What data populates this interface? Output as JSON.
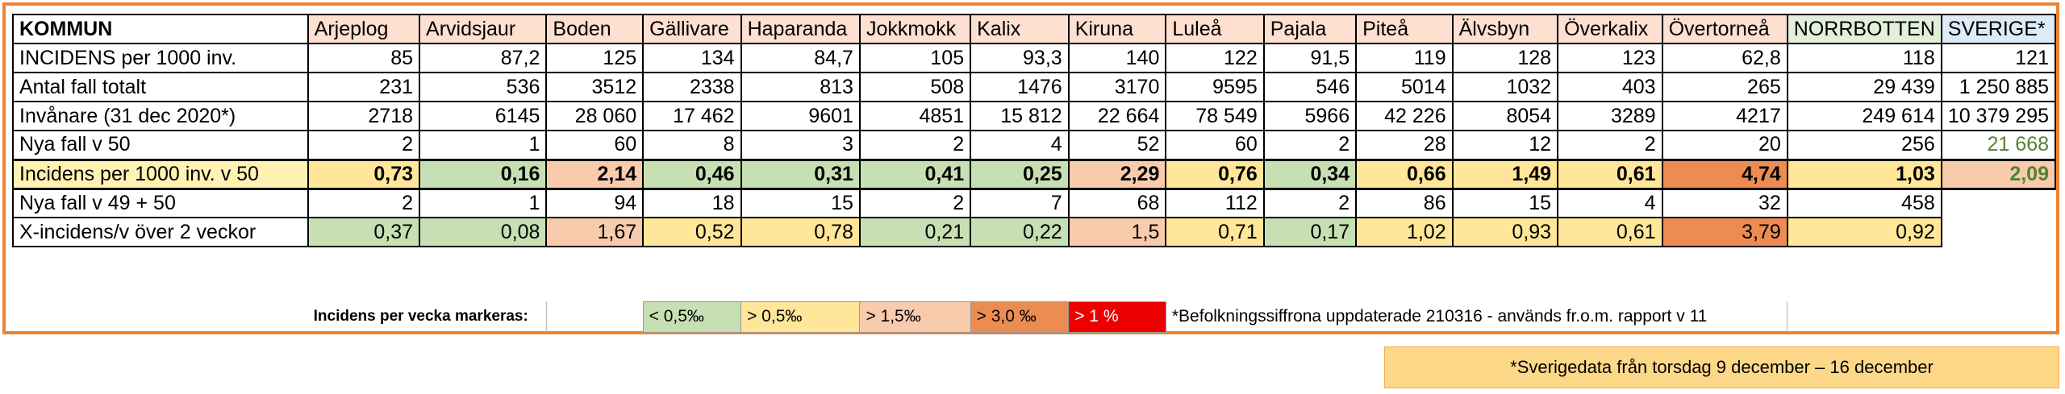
{
  "table": {
    "corner": "KOMMUN",
    "columns": [
      "Arjeplog",
      "Arvidsjaur",
      "Boden",
      "Gällivare",
      "Haparanda",
      "Jokkmokk",
      "Kalix",
      "Kiruna",
      "Luleå",
      "Pajala",
      "Piteå",
      "Älvsbyn",
      "Överkalix",
      "Övertorneå",
      "NORRBOTTEN",
      "SVERIGE*"
    ],
    "rows": [
      {
        "label": "INCIDENS per 1000 inv.",
        "values": [
          "85",
          "87,2",
          "125",
          "134",
          "84,7",
          "105",
          "93,3",
          "140",
          "122",
          "91,5",
          "119",
          "128",
          "123",
          "62,8",
          "118",
          "121"
        ]
      },
      {
        "label": "Antal fall totalt",
        "values": [
          "231",
          "536",
          "3512",
          "2338",
          "813",
          "508",
          "1476",
          "3170",
          "9595",
          "546",
          "5014",
          "1032",
          "403",
          "265",
          "29 439",
          "1 250 885"
        ]
      },
      {
        "label": "Invånare (31 dec 2020*)",
        "values": [
          "2718",
          "6145",
          "28 060",
          "17 462",
          "9601",
          "4851",
          "15 812",
          "22 664",
          "78 549",
          "5966",
          "42 226",
          "8054",
          "3289",
          "4217",
          "249 614",
          "10 379 295"
        ]
      },
      {
        "label": "Nya fall v 50",
        "values": [
          "2",
          "1",
          "60",
          "8",
          "3",
          "2",
          "4",
          "52",
          "60",
          "2",
          "28",
          "12",
          "2",
          "20",
          "256",
          "21 668"
        ]
      },
      {
        "label": "Incidens per 1000 inv. v 50",
        "values": [
          "0,73",
          "0,16",
          "2,14",
          "0,46",
          "0,31",
          "0,41",
          "0,25",
          "2,29",
          "0,76",
          "0,34",
          "0,66",
          "1,49",
          "0,61",
          "4,74",
          "1,03",
          "2,09"
        ]
      },
      {
        "label": "Nya fall v 49 + 50",
        "values": [
          "2",
          "1",
          "94",
          "18",
          "15",
          "2",
          "7",
          "68",
          "112",
          "2",
          "86",
          "15",
          "4",
          "32",
          "458",
          ""
        ]
      },
      {
        "label": "X-incidens/v över 2 veckor",
        "values": [
          "0,37",
          "0,08",
          "1,67",
          "0,52",
          "0,78",
          "0,21",
          "0,22",
          "1,5",
          "0,71",
          "0,17",
          "1,02",
          "0,93",
          "0,61",
          "3,79",
          "0,92",
          ""
        ]
      }
    ]
  },
  "legend": {
    "title": "Incidens per vecka markeras:",
    "items": [
      "< 0,5‰",
      "> 0,5‰",
      "> 1,5‰",
      "> 3,0 ‰",
      "> 1 %"
    ],
    "population_note": "*Befolkningssiffrona uppdaterade 210316 - används fr.o.m. rapport v 11"
  },
  "footnote": "*Sverigedata från torsdag 9 december – 16 december",
  "colors": {
    "frame": "#ec8434",
    "green": "#c6e0b4",
    "yellow": "#ffe699",
    "pink": "#f8cbad",
    "orange": "#ed8c52",
    "red": "#ee0000",
    "header_peach": "#fde0cf",
    "header_green": "#e2efda",
    "header_blue": "#ddebf7",
    "sweden_new_cases_text": "#548235"
  }
}
